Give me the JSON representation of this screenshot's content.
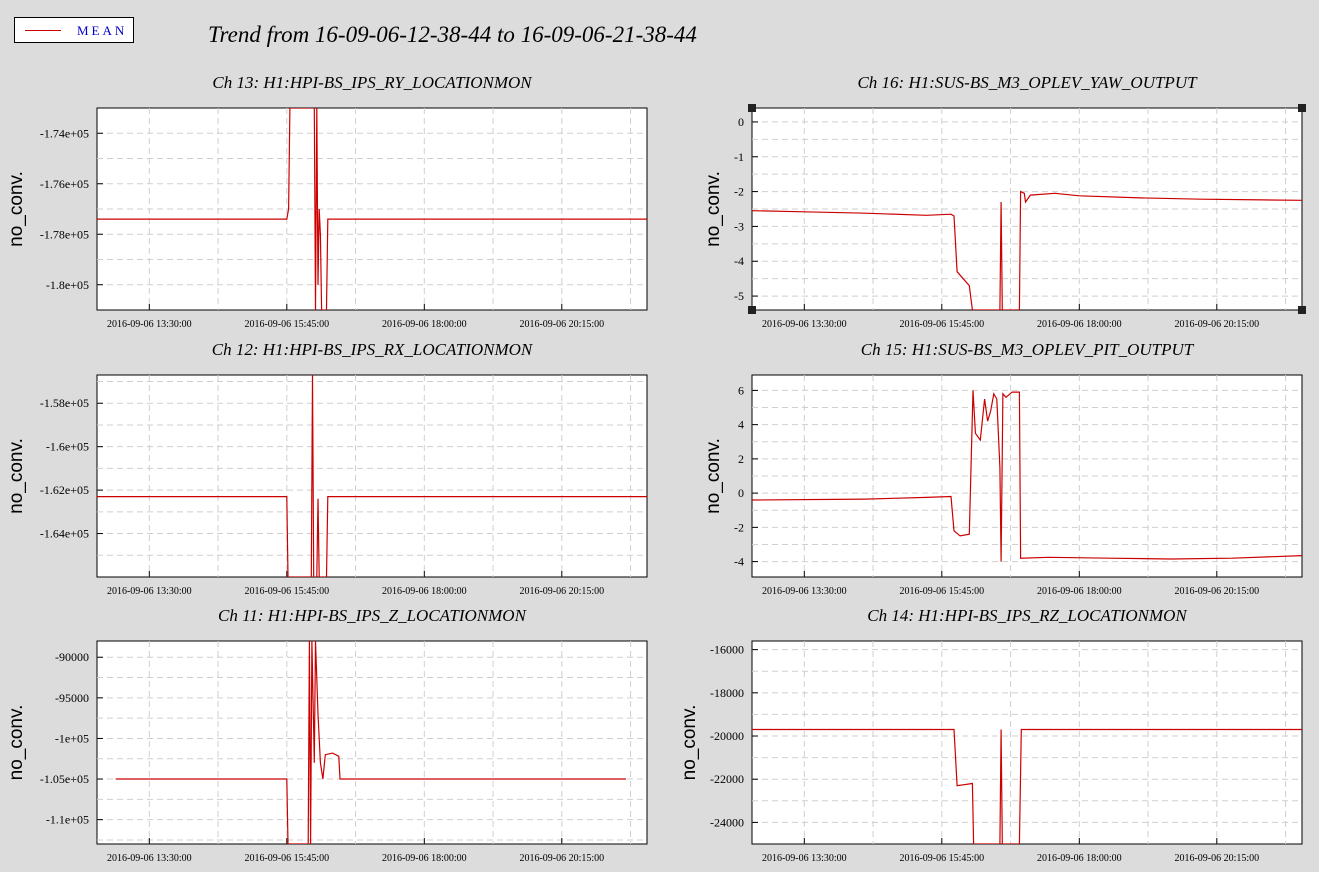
{
  "legend": {
    "label": "MEAN",
    "color": "#cc0000"
  },
  "title": "Trend from 16-09-06-12-38-44 to 16-09-06-21-38-44",
  "colors": {
    "background": "#dcdcdc",
    "trace": "#cc0000",
    "grid": "#cfcfcf"
  },
  "chart_data": [
    {
      "type": "line",
      "title": "Ch 13: H1:HPI-BS_IPS_RY_LOCATIONMON",
      "ylabel": "no_conv.",
      "xlabel": "",
      "x_ticks": [
        "2016-09-06 13:30:00",
        "2016-09-06 15:45:00",
        "2016-09-06 18:00:00",
        "2016-09-06 20:15:00"
      ],
      "y_ticks": [
        "-1.74e+05",
        "-1.76e+05",
        "-1.78e+05",
        "-1.8e+05"
      ],
      "y_tick_values": [
        -174000,
        -176000,
        -178000,
        -180000
      ],
      "ylim": [
        -181000,
        -173000
      ],
      "xlim_hours": [
        12.644,
        21.644
      ],
      "grid": true,
      "series": [
        {
          "values_xy": [
            [
              12.644,
              -177400
            ],
            [
              15.75,
              -177400
            ],
            [
              15.78,
              -177000
            ],
            [
              15.8,
              -173000
            ],
            [
              16.2,
              -173000
            ],
            [
              16.22,
              -181000
            ],
            [
              16.24,
              -173000
            ],
            [
              16.26,
              -180000
            ],
            [
              16.28,
              -177000
            ],
            [
              16.3,
              -178000
            ],
            [
              16.32,
              -181000
            ],
            [
              16.4,
              -181000
            ],
            [
              16.42,
              -177400
            ],
            [
              21.644,
              -177400
            ]
          ]
        }
      ]
    },
    {
      "type": "line",
      "title": "Ch 16: H1:SUS-BS_M3_OPLEV_YAW_OUTPUT",
      "ylabel": "no_conv.",
      "xlabel": "",
      "x_ticks": [
        "2016-09-06 13:30:00",
        "2016-09-06 15:45:00",
        "2016-09-06 18:00:00",
        "2016-09-06 20:15:00"
      ],
      "y_ticks": [
        "0",
        "-1",
        "-2",
        "-3",
        "-4",
        "-5"
      ],
      "y_tick_values": [
        0,
        -1,
        -2,
        -3,
        -4,
        -5
      ],
      "ylim": [
        -5.4,
        0.4
      ],
      "xlim_hours": [
        12.644,
        21.644
      ],
      "grid": true,
      "series": [
        {
          "values_xy": [
            [
              12.644,
              -2.55
            ],
            [
              13.5,
              -2.58
            ],
            [
              14.5,
              -2.62
            ],
            [
              15.5,
              -2.68
            ],
            [
              15.9,
              -2.65
            ],
            [
              15.95,
              -2.7
            ],
            [
              16.0,
              -4.3
            ],
            [
              16.1,
              -4.5
            ],
            [
              16.2,
              -4.7
            ],
            [
              16.25,
              -5.4
            ],
            [
              16.7,
              -5.4
            ],
            [
              16.72,
              -2.3
            ],
            [
              16.74,
              -5.4
            ],
            [
              17.02,
              -5.4
            ],
            [
              17.04,
              -2.0
            ],
            [
              17.1,
              -2.05
            ],
            [
              17.12,
              -2.3
            ],
            [
              17.2,
              -2.1
            ],
            [
              17.6,
              -2.05
            ],
            [
              18.0,
              -2.12
            ],
            [
              19.0,
              -2.18
            ],
            [
              20.0,
              -2.22
            ],
            [
              21.0,
              -2.24
            ],
            [
              21.644,
              -2.25
            ]
          ]
        }
      ]
    },
    {
      "type": "line",
      "title": "Ch 12: H1:HPI-BS_IPS_RX_LOCATIONMON",
      "ylabel": "no_conv.",
      "xlabel": "",
      "x_ticks": [
        "2016-09-06 13:30:00",
        "2016-09-06 15:45:00",
        "2016-09-06 18:00:00",
        "2016-09-06 20:15:00"
      ],
      "y_ticks": [
        "-1.58e+05",
        "-1.6e+05",
        "-1.62e+05",
        "-1.64e+05"
      ],
      "y_tick_values": [
        -158000,
        -160000,
        -162000,
        -164000
      ],
      "ylim": [
        -166000,
        -156700
      ],
      "xlim_hours": [
        12.644,
        21.644
      ],
      "grid": true,
      "series": [
        {
          "values_xy": [
            [
              12.644,
              -162300
            ],
            [
              15.75,
              -162300
            ],
            [
              15.77,
              -166000
            ],
            [
              16.15,
              -166000
            ],
            [
              16.17,
              -156700
            ],
            [
              16.19,
              -166000
            ],
            [
              16.24,
              -166000
            ],
            [
              16.26,
              -162400
            ],
            [
              16.28,
              -166000
            ],
            [
              16.4,
              -166000
            ],
            [
              16.42,
              -162300
            ],
            [
              21.644,
              -162300
            ]
          ]
        }
      ]
    },
    {
      "type": "line",
      "title": "Ch 15: H1:SUS-BS_M3_OPLEV_PIT_OUTPUT",
      "ylabel": "no_conv.",
      "xlabel": "",
      "x_ticks": [
        "2016-09-06 13:30:00",
        "2016-09-06 15:45:00",
        "2016-09-06 18:00:00",
        "2016-09-06 20:15:00"
      ],
      "y_ticks": [
        "6",
        "4",
        "2",
        "0",
        "-2",
        "-4"
      ],
      "y_tick_values": [
        6,
        4,
        2,
        0,
        -2,
        -4
      ],
      "ylim": [
        -4.9,
        6.9
      ],
      "xlim_hours": [
        12.644,
        21.644
      ],
      "grid": true,
      "series": [
        {
          "values_xy": [
            [
              12.644,
              -0.4
            ],
            [
              14.5,
              -0.35
            ],
            [
              15.5,
              -0.25
            ],
            [
              15.9,
              -0.2
            ],
            [
              15.95,
              -2.2
            ],
            [
              16.05,
              -2.5
            ],
            [
              16.2,
              -2.4
            ],
            [
              16.26,
              6.0
            ],
            [
              16.3,
              3.5
            ],
            [
              16.38,
              3.1
            ],
            [
              16.45,
              5.5
            ],
            [
              16.5,
              4.2
            ],
            [
              16.55,
              4.8
            ],
            [
              16.6,
              5.8
            ],
            [
              16.65,
              5.5
            ],
            [
              16.7,
              1.5
            ],
            [
              16.72,
              -4.0
            ],
            [
              16.75,
              5.8
            ],
            [
              16.8,
              5.6
            ],
            [
              16.9,
              5.9
            ],
            [
              17.02,
              5.9
            ],
            [
              17.04,
              -3.8
            ],
            [
              17.5,
              -3.75
            ],
            [
              18.5,
              -3.8
            ],
            [
              19.5,
              -3.85
            ],
            [
              20.5,
              -3.8
            ],
            [
              21.644,
              -3.65
            ]
          ]
        }
      ]
    },
    {
      "type": "line",
      "title": "Ch 11: H1:HPI-BS_IPS_Z_LOCATIONMON",
      "ylabel": "no_conv.",
      "xlabel": "",
      "x_ticks": [
        "2016-09-06 13:30:00",
        "2016-09-06 15:45:00",
        "2016-09-06 18:00:00",
        "2016-09-06 20:15:00"
      ],
      "y_ticks": [
        "-90000",
        "-95000",
        "-1e+05",
        "-1.05e+05",
        "-1.1e+05"
      ],
      "y_tick_values": [
        -90000,
        -95000,
        -100000,
        -105000,
        -110000
      ],
      "ylim": [
        -113000,
        -88000
      ],
      "xlim_hours": [
        12.644,
        21.644
      ],
      "grid": true,
      "series": [
        {
          "values_xy": [
            [
              12.95,
              -105000
            ],
            [
              15.75,
              -105000
            ],
            [
              15.77,
              -113000
            ],
            [
              16.1,
              -113000
            ],
            [
              16.12,
              -88000
            ],
            [
              16.14,
              -113000
            ],
            [
              16.16,
              -88000
            ],
            [
              16.2,
              -103000
            ],
            [
              16.22,
              -88000
            ],
            [
              16.26,
              -97000
            ],
            [
              16.3,
              -103000
            ],
            [
              16.34,
              -105000
            ],
            [
              16.38,
              -102000
            ],
            [
              16.5,
              -101800
            ],
            [
              16.6,
              -102200
            ],
            [
              16.62,
              -105000
            ],
            [
              21.3,
              -105000
            ]
          ]
        }
      ]
    },
    {
      "type": "line",
      "title": "Ch 14: H1:HPI-BS_IPS_RZ_LOCATIONMON",
      "ylabel": "no_conv.",
      "xlabel": "",
      "x_ticks": [
        "2016-09-06 13:30:00",
        "2016-09-06 15:45:00",
        "2016-09-06 18:00:00",
        "2016-09-06 20:15:00"
      ],
      "y_ticks": [
        "-16000",
        "-18000",
        "-20000",
        "-22000",
        "-24000"
      ],
      "y_tick_values": [
        -16000,
        -18000,
        -20000,
        -22000,
        -24000
      ],
      "ylim": [
        -25000,
        -15600
      ],
      "xlim_hours": [
        12.644,
        21.644
      ],
      "grid": true,
      "series": [
        {
          "values_xy": [
            [
              12.644,
              -19700
            ],
            [
              15.95,
              -19700
            ],
            [
              16.0,
              -22300
            ],
            [
              16.25,
              -22200
            ],
            [
              16.27,
              -25000
            ],
            [
              16.7,
              -25000
            ],
            [
              16.72,
              -19700
            ],
            [
              16.74,
              -25000
            ],
            [
              17.02,
              -25000
            ],
            [
              17.05,
              -19700
            ],
            [
              21.644,
              -19700
            ]
          ]
        }
      ]
    }
  ]
}
